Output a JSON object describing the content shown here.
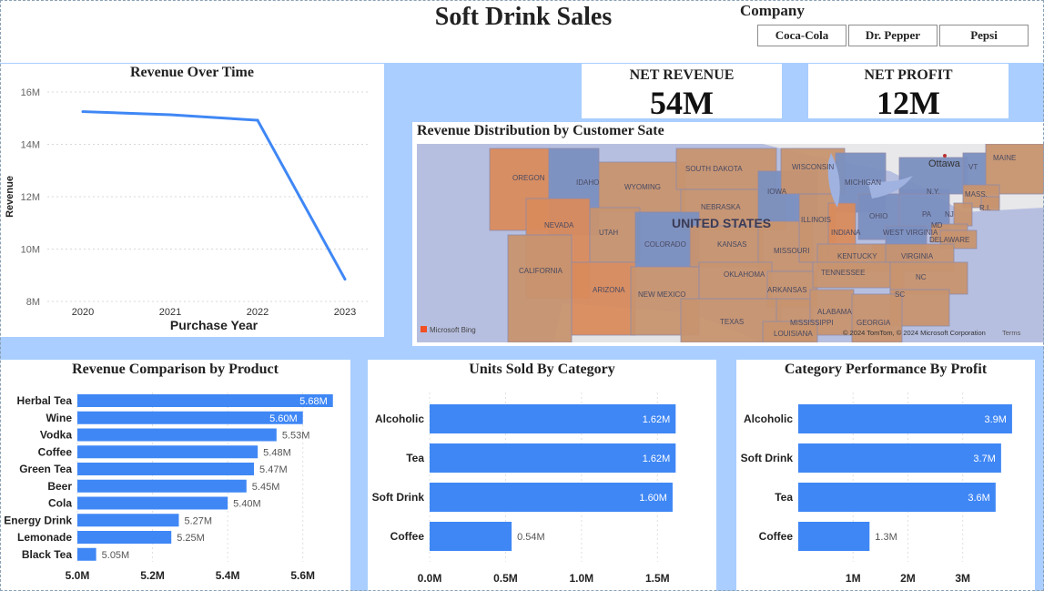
{
  "header": {
    "title": "Soft Drink Sales",
    "company_label": "Company",
    "companies": [
      "Coca-Cola",
      "Dr. Pepper",
      "Pepsi"
    ]
  },
  "kpis": {
    "net_revenue": {
      "label": "NET REVENUE",
      "value": "54M"
    },
    "net_profit": {
      "label": "NET PROFIT",
      "value": "12M"
    }
  },
  "map": {
    "title": "Revenue Distribution by Customer Sate",
    "country_label": "UNITED STATES",
    "city_label": "Ottawa",
    "bing_label": "Microsoft Bing",
    "copyright": "© 2024 TomTom, © 2024 Microsoft Corporation",
    "terms": "Terms",
    "state_labels": [
      "OREGON",
      "IDAHO",
      "WYOMING",
      "SOUTH DAKOTA",
      "NEBRASKA",
      "IOWA",
      "WISCONSIN",
      "MICHIGAN",
      "NEVADA",
      "UTAH",
      "COLORADO",
      "KANSAS",
      "MISSOURI",
      "ILLINOIS",
      "INDIANA",
      "OHIO",
      "PA",
      "N.Y.",
      "VT",
      "MAINE",
      "MASS.",
      "R.I.",
      "NJ",
      "MD",
      "DELAWARE",
      "WEST VIRGINIA",
      "VIRGINIA",
      "KENTUCKY",
      "CALIFORNIA",
      "ARIZONA",
      "NEW MEXICO",
      "OKLAHOMA",
      "ARKANSAS",
      "TENNESSEE",
      "NC",
      "SC",
      "TEXAS",
      "MISSISSIPPI",
      "ALABAMA",
      "GEORGIA",
      "LOUISIANA"
    ],
    "colors": {
      "orange": "#d98b5c",
      "blue": "#7a8fc0",
      "tan": "#c7936f",
      "water": "#aeb9dc"
    }
  },
  "chart_data": [
    {
      "type": "line",
      "title": "Revenue Over Time",
      "xlabel": "Purchase Year",
      "ylabel": "Revenue",
      "x": [
        "2020",
        "2021",
        "2022",
        "2023"
      ],
      "values": [
        15.25,
        15.13,
        14.92,
        8.85
      ],
      "ylim": [
        8,
        16
      ],
      "yticks": [
        "8M",
        "10M",
        "12M",
        "14M",
        "16M"
      ],
      "color": "#3f87f5"
    },
    {
      "type": "bar",
      "orientation": "horizontal",
      "title": "Revenue Comparison by Product",
      "categories": [
        "Herbal Tea",
        "Wine",
        "Vodka",
        "Coffee",
        "Green Tea",
        "Beer",
        "Cola",
        "Energy Drink",
        "Lemonade",
        "Black Tea"
      ],
      "values": [
        5.68,
        5.6,
        5.53,
        5.48,
        5.47,
        5.45,
        5.4,
        5.27,
        5.25,
        5.05
      ],
      "labels": [
        "5.68M",
        "5.60M",
        "5.53M",
        "5.48M",
        "5.47M",
        "5.45M",
        "5.40M",
        "5.27M",
        "5.25M",
        "5.05M"
      ],
      "xlim": [
        5.0,
        5.7
      ],
      "xticks": [
        "5.0M",
        "5.2M",
        "5.4M",
        "5.6M"
      ],
      "color": "#3f87f5"
    },
    {
      "type": "bar",
      "orientation": "horizontal",
      "title": "Units Sold By Category",
      "categories": [
        "Alcoholic",
        "Tea",
        "Soft Drink",
        "Coffee"
      ],
      "values": [
        1.62,
        1.62,
        1.6,
        0.54
      ],
      "labels": [
        "1.62M",
        "1.62M",
        "1.60M",
        "0.54M"
      ],
      "xlim": [
        0,
        1.75
      ],
      "xticks": [
        "0.0M",
        "0.5M",
        "1.0M",
        "1.5M"
      ],
      "color": "#3f87f5"
    },
    {
      "type": "bar",
      "orientation": "horizontal",
      "title": "Category Performance By Profit",
      "categories": [
        "Alcoholic",
        "Soft Drink",
        "Tea",
        "Coffee"
      ],
      "values": [
        3.9,
        3.7,
        3.6,
        1.3
      ],
      "labels": [
        "3.9M",
        "3.7M",
        "3.6M",
        "1.3M"
      ],
      "xlim": [
        0,
        4.2
      ],
      "xticks": [
        "1M",
        "2M",
        "3M"
      ],
      "color": "#3f87f5"
    }
  ]
}
